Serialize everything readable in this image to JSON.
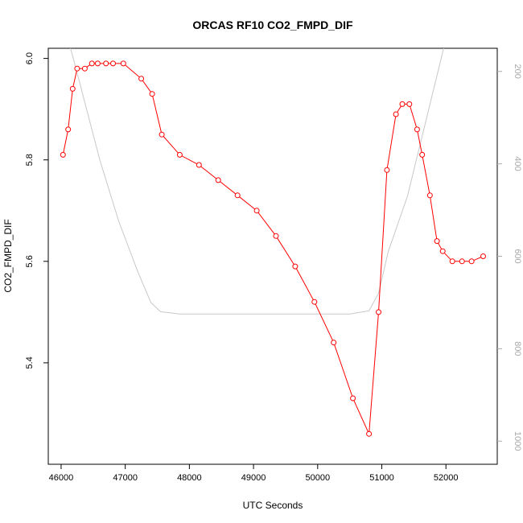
{
  "chart_data": {
    "type": "line",
    "title": "ORCAS RF10 CO2_FMPD_DIF",
    "xlabel": "UTC Seconds",
    "ylabel": "CO2_FMPD_DIF",
    "xlim": [
      45800,
      52800
    ],
    "ylim": [
      5.2,
      6.02
    ],
    "x_ticks": [
      46000,
      47000,
      48000,
      49000,
      50000,
      51000,
      52000
    ],
    "y_ticks": [
      5.4,
      5.6,
      5.8,
      6.0
    ],
    "y_tick_labels": [
      "5.4",
      "5.6",
      "5.8",
      "6.0"
    ],
    "y2_ticks": [
      200,
      400,
      600,
      800,
      1000
    ],
    "y2lim_inverted": [
      150,
      1050
    ],
    "grid": false,
    "series": [
      {
        "color": "#ff0000",
        "marker": "open-circle",
        "x": [
          46030,
          46110,
          46180,
          46250,
          46370,
          46480,
          46570,
          46700,
          46810,
          46970,
          47250,
          47420,
          47570,
          47850,
          48150,
          48450,
          48750,
          49050,
          49350,
          49650,
          49950,
          50250,
          50550,
          50800,
          50950,
          51080,
          51220,
          51320,
          51430,
          51550,
          51630,
          51750,
          51860,
          51950,
          52100,
          52250,
          52400,
          52580
        ],
        "values": [
          5.81,
          5.86,
          5.94,
          5.98,
          5.98,
          5.99,
          5.99,
          5.99,
          5.99,
          5.99,
          5.96,
          5.93,
          5.85,
          5.81,
          5.79,
          5.76,
          5.73,
          5.7,
          5.65,
          5.59,
          5.52,
          5.44,
          5.33,
          5.26,
          5.5,
          5.78,
          5.89,
          5.91,
          5.91,
          5.86,
          5.81,
          5.73,
          5.64,
          5.62,
          5.6,
          5.6,
          5.6,
          5.61
        ]
      },
      {
        "color": "#c8c8c8",
        "axis": "right",
        "x": [
          46100,
          46300,
          46600,
          46900,
          47200,
          47400,
          47550,
          47850,
          48500,
          49500,
          50500,
          50800,
          50950,
          51100,
          51400,
          51700,
          52000,
          52200
        ],
        "values": [
          125,
          230,
          390,
          525,
          635,
          700,
          720,
          725,
          725,
          725,
          725,
          718,
          680,
          590,
          470,
          300,
          130,
          50
        ]
      }
    ]
  }
}
